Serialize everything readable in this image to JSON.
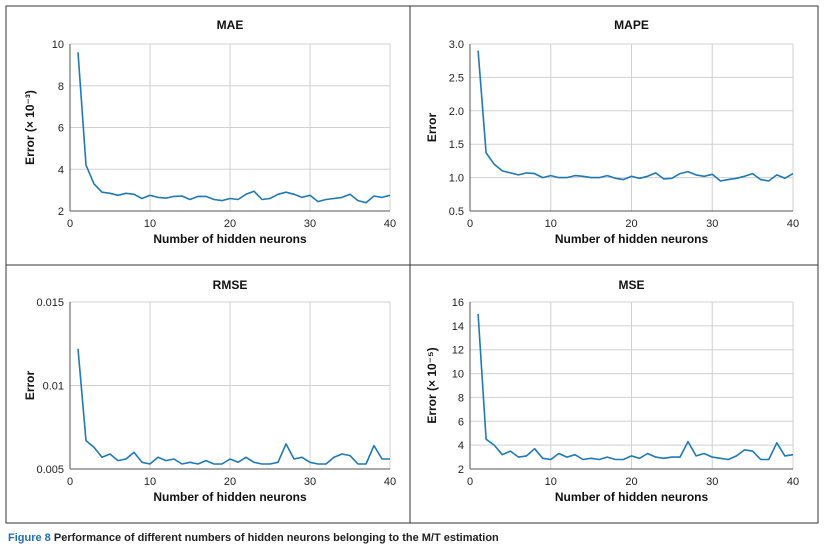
{
  "caption": {
    "label": "Figure 8",
    "text": "Performance of different numbers of hidden neurons belonging to the M/T estimation"
  },
  "style": {
    "line_color": "#1f79b4",
    "grid_color": "#d0d0d0",
    "border_color": "#333333"
  },
  "chart_data": [
    {
      "type": "line",
      "title": "MAE",
      "xlabel": "Number of hidden neurons",
      "ylabel": "Error (× 10⁻³)",
      "xlim": [
        0,
        40
      ],
      "ylim": [
        2,
        10
      ],
      "xticks": [
        0,
        10,
        20,
        30,
        40
      ],
      "yticks": [
        2,
        4,
        6,
        8,
        10
      ],
      "ytick_labels": [
        "2",
        "4",
        "6",
        "8",
        "10"
      ],
      "grid": true,
      "x": [
        1,
        2,
        3,
        4,
        5,
        6,
        7,
        8,
        9,
        10,
        11,
        12,
        13,
        14,
        15,
        16,
        17,
        18,
        19,
        20,
        21,
        22,
        23,
        24,
        25,
        26,
        27,
        28,
        29,
        30,
        31,
        32,
        33,
        34,
        35,
        36,
        37,
        38,
        39,
        40
      ],
      "y": [
        9.6,
        4.2,
        3.3,
        2.9,
        2.85,
        2.75,
        2.85,
        2.8,
        2.6,
        2.75,
        2.65,
        2.62,
        2.7,
        2.72,
        2.55,
        2.7,
        2.7,
        2.55,
        2.5,
        2.6,
        2.55,
        2.8,
        2.95,
        2.55,
        2.6,
        2.8,
        2.9,
        2.8,
        2.65,
        2.75,
        2.45,
        2.55,
        2.6,
        2.65,
        2.8,
        2.5,
        2.4,
        2.72,
        2.65,
        2.75
      ]
    },
    {
      "type": "line",
      "title": "MAPE",
      "xlabel": "Number of hidden neurons",
      "ylabel": "Error",
      "xlim": [
        0,
        40
      ],
      "ylim": [
        0.5,
        3.0
      ],
      "xticks": [
        0,
        10,
        20,
        30,
        40
      ],
      "yticks": [
        0.5,
        1.0,
        1.5,
        2.0,
        2.5,
        3.0
      ],
      "ytick_labels": [
        "0.5",
        "1.0",
        "1.5",
        "2.0",
        "2.5",
        "3.0"
      ],
      "grid": true,
      "x": [
        1,
        2,
        3,
        4,
        5,
        6,
        7,
        8,
        9,
        10,
        11,
        12,
        13,
        14,
        15,
        16,
        17,
        18,
        19,
        20,
        21,
        22,
        23,
        24,
        25,
        26,
        27,
        28,
        29,
        30,
        31,
        32,
        33,
        34,
        35,
        36,
        37,
        38,
        39,
        40
      ],
      "y": [
        2.9,
        1.37,
        1.2,
        1.1,
        1.07,
        1.04,
        1.07,
        1.06,
        1.0,
        1.03,
        1.0,
        1.0,
        1.03,
        1.02,
        1.0,
        1.0,
        1.03,
        0.99,
        0.97,
        1.02,
        0.99,
        1.02,
        1.07,
        0.98,
        0.99,
        1.06,
        1.09,
        1.04,
        1.02,
        1.05,
        0.95,
        0.97,
        0.99,
        1.02,
        1.06,
        0.97,
        0.95,
        1.04,
        0.99,
        1.06
      ]
    },
    {
      "type": "line",
      "title": "RMSE",
      "xlabel": "Number of hidden neurons",
      "ylabel": "Error",
      "xlim": [
        0,
        40
      ],
      "ylim": [
        0.005,
        0.015
      ],
      "xticks": [
        0,
        10,
        20,
        30,
        40
      ],
      "yticks": [
        0.005,
        0.01,
        0.015
      ],
      "ytick_labels": [
        "0.005",
        "0.01",
        "0.015"
      ],
      "grid": true,
      "x": [
        1,
        2,
        3,
        4,
        5,
        6,
        7,
        8,
        9,
        10,
        11,
        12,
        13,
        14,
        15,
        16,
        17,
        18,
        19,
        20,
        21,
        22,
        23,
        24,
        25,
        26,
        27,
        28,
        29,
        30,
        31,
        32,
        33,
        34,
        35,
        36,
        37,
        38,
        39,
        40
      ],
      "y": [
        0.0122,
        0.0067,
        0.0063,
        0.0057,
        0.0059,
        0.0055,
        0.0056,
        0.006,
        0.0054,
        0.0053,
        0.0057,
        0.0055,
        0.0056,
        0.0053,
        0.0054,
        0.0053,
        0.0055,
        0.0053,
        0.0053,
        0.0056,
        0.0054,
        0.0057,
        0.0054,
        0.0053,
        0.0053,
        0.0054,
        0.0065,
        0.0056,
        0.0057,
        0.0054,
        0.0053,
        0.0053,
        0.0057,
        0.0059,
        0.0058,
        0.0053,
        0.0053,
        0.0064,
        0.0056,
        0.0056
      ]
    },
    {
      "type": "line",
      "title": "MSE",
      "xlabel": "Number of hidden neurons",
      "ylabel": "Error (× 10⁻⁵)",
      "xlim": [
        0,
        40
      ],
      "ylim": [
        2,
        16
      ],
      "xticks": [
        0,
        10,
        20,
        30,
        40
      ],
      "yticks": [
        2,
        4,
        6,
        8,
        10,
        12,
        14,
        16
      ],
      "ytick_labels": [
        "2",
        "4",
        "6",
        "8",
        "10",
        "12",
        "14",
        "16"
      ],
      "grid": true,
      "x": [
        1,
        2,
        3,
        4,
        5,
        6,
        7,
        8,
        9,
        10,
        11,
        12,
        13,
        14,
        15,
        16,
        17,
        18,
        19,
        20,
        21,
        22,
        23,
        24,
        25,
        26,
        27,
        28,
        29,
        30,
        31,
        32,
        33,
        34,
        35,
        36,
        37,
        38,
        39,
        40
      ],
      "y": [
        15.0,
        4.5,
        4.0,
        3.2,
        3.5,
        3.0,
        3.1,
        3.7,
        2.9,
        2.8,
        3.3,
        3.0,
        3.2,
        2.8,
        2.9,
        2.8,
        3.0,
        2.8,
        2.8,
        3.1,
        2.9,
        3.3,
        3.0,
        2.9,
        3.0,
        3.0,
        4.3,
        3.1,
        3.3,
        3.0,
        2.9,
        2.8,
        3.1,
        3.6,
        3.5,
        2.8,
        2.8,
        4.2,
        3.1,
        3.2
      ]
    }
  ]
}
